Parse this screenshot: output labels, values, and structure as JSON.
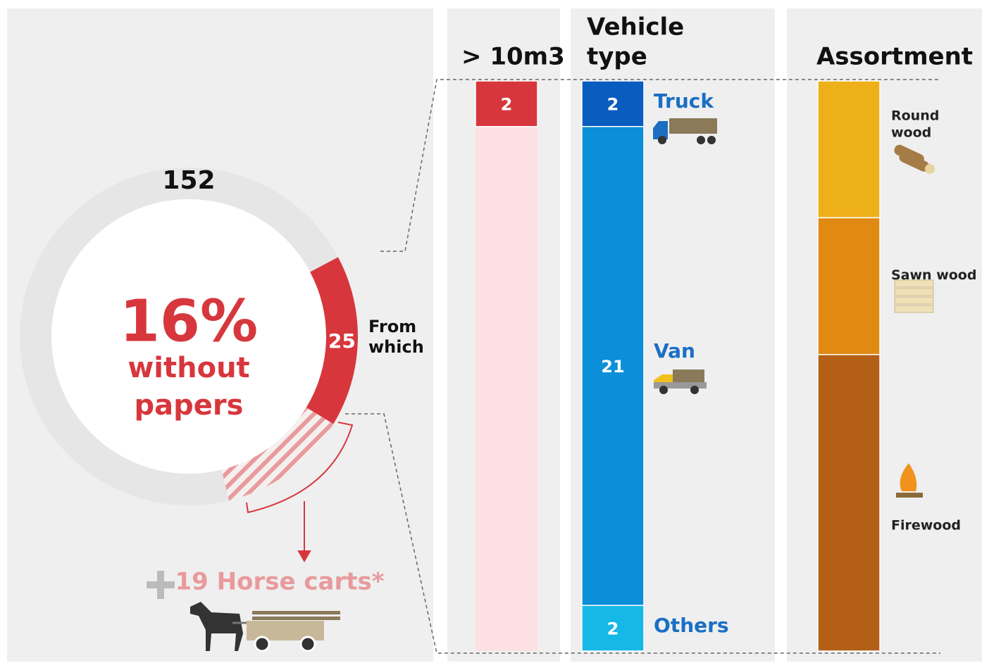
{
  "chart_data": [
    {
      "type": "pie",
      "total": 152,
      "track_color": "#e6e6e6",
      "segments": [
        {
          "value": 25,
          "color": "#d7373c"
        },
        {
          "value": 19,
          "label": "19 Horse carts*",
          "color": "#e99a9c"
        }
      ],
      "percent": "16%",
      "caption": [
        "without",
        "papers"
      ],
      "note": [
        "From",
        "which"
      ]
    },
    {
      "type": "bar",
      "title": [
        "> 10m3"
      ],
      "ylim": [
        0,
        25
      ],
      "background": "#fde0e2",
      "categories": [
        null
      ],
      "values": [
        2
      ],
      "colors": [
        "#d7373c"
      ]
    },
    {
      "type": "bar",
      "title": [
        "Vehicle",
        "type"
      ],
      "ylim": [
        0,
        25
      ],
      "categories": [
        [
          "Truck"
        ],
        [
          "Van"
        ],
        [
          "Others"
        ]
      ],
      "values": [
        2,
        21,
        2
      ],
      "colors": [
        "#0a5cbf",
        "#0a8fd8",
        "#16b8e6"
      ],
      "label_color": "#1a6fc4"
    },
    {
      "type": "bar",
      "title": [
        "Assortment"
      ],
      "ylim": [
        0,
        25
      ],
      "categories": [
        [
          "Round",
          "wood"
        ],
        [
          "Sawn wood"
        ],
        [
          "Firewood"
        ]
      ],
      "values": [
        6,
        6,
        13
      ],
      "colors": [
        "#edb018",
        "#e08a14",
        "#b35f15"
      ],
      "label_color": "#222"
    }
  ]
}
